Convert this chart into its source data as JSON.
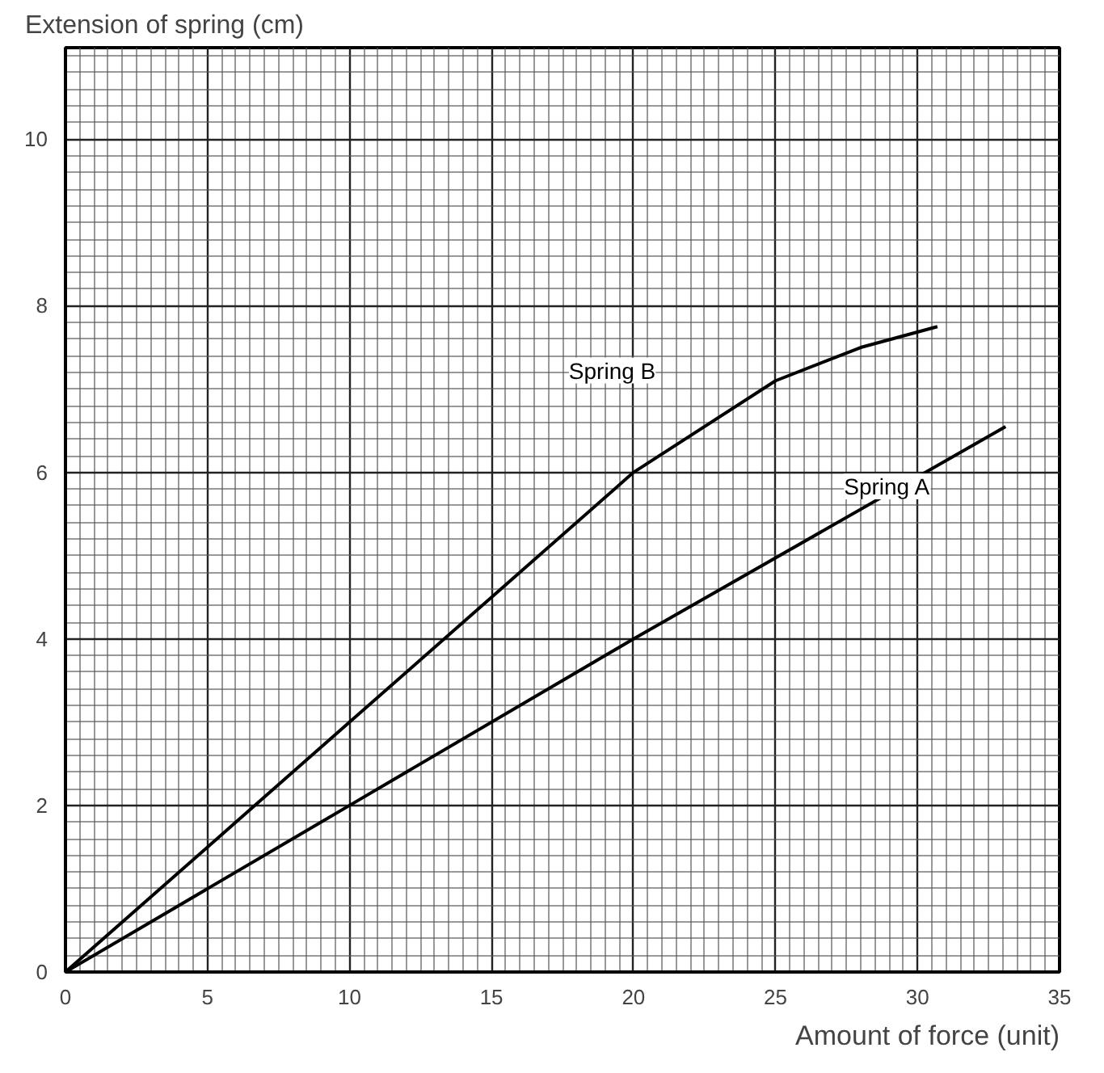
{
  "chart_data": {
    "type": "line",
    "xlabel": "Amount of force (unit)",
    "ylabel": "Extension of spring (cm)",
    "xlim": [
      0,
      35
    ],
    "ylim": [
      0,
      11.1
    ],
    "xticks": [
      0,
      5,
      10,
      15,
      20,
      25,
      30,
      35
    ],
    "yticks": [
      0,
      2,
      4,
      6,
      8,
      10
    ],
    "grid": true,
    "series": [
      {
        "name": "Spring B",
        "color": "#000000",
        "x": [
          0,
          5,
          10,
          15,
          20,
          25,
          28,
          30.7
        ],
        "values": [
          0,
          1.5,
          3,
          4.5,
          6,
          7.1,
          7.5,
          7.75
        ]
      },
      {
        "name": "Spring A",
        "color": "#000000",
        "x": [
          0,
          10,
          20,
          33.1
        ],
        "values": [
          0,
          2,
          4,
          6.55
        ]
      }
    ]
  }
}
